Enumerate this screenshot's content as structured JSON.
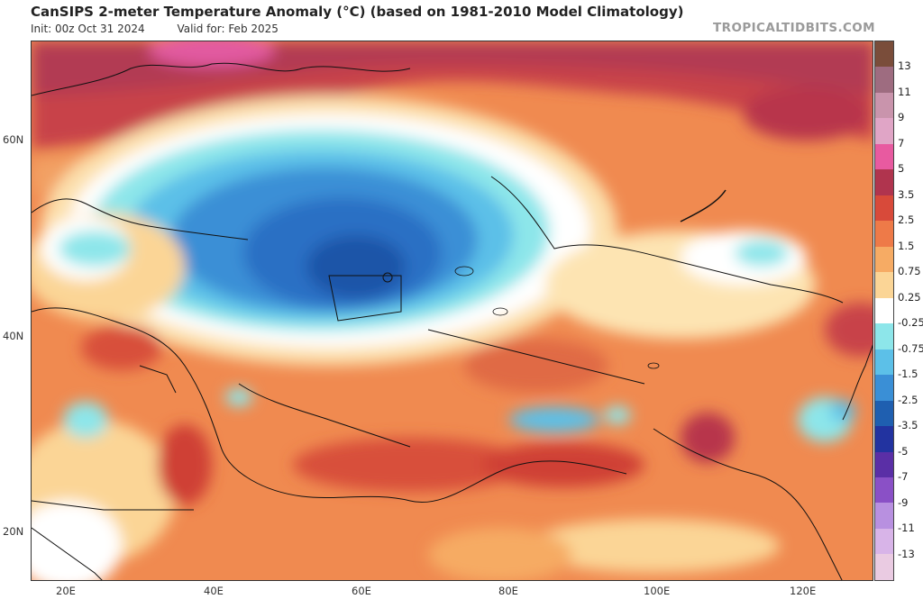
{
  "header": {
    "title": "CanSIPS 2-meter Temperature Anomaly (°C) (based on 1981-2010 Model Climatology)",
    "init": "Init: 00z Oct 31 2024",
    "valid": "Valid for: Feb 2025",
    "brand": "TROPICALTIDBITS.COM"
  },
  "map": {
    "lat_labels": [
      "60N",
      "40N",
      "20N"
    ],
    "lon_labels": [
      "20E",
      "40E",
      "60E",
      "80E",
      "100E",
      "120E"
    ]
  },
  "colorbar": {
    "labels": [
      "13",
      "11",
      "9",
      "7",
      "5",
      "3.5",
      "2.5",
      "1.5",
      "0.75",
      "0.25",
      "-0.25",
      "-0.75",
      "-1.5",
      "-2.5",
      "-3.5",
      "-5",
      "-7",
      "-9",
      "-11",
      "-13"
    ],
    "colors": [
      "#7a4d3a",
      "#9e6c80",
      "#c994ac",
      "#e0a5c6",
      "#e85aa0",
      "#b0344e",
      "#d84a3a",
      "#ee7a48",
      "#f6ab64",
      "#fbd596",
      "#ffffff",
      "#8de6ea",
      "#5cc0e8",
      "#3a8fd6",
      "#1f5fb0",
      "#2233a0",
      "#5a2fa6",
      "#8a50c6",
      "#b890e0",
      "#d8b4e8",
      "#eacbe2"
    ]
  }
}
